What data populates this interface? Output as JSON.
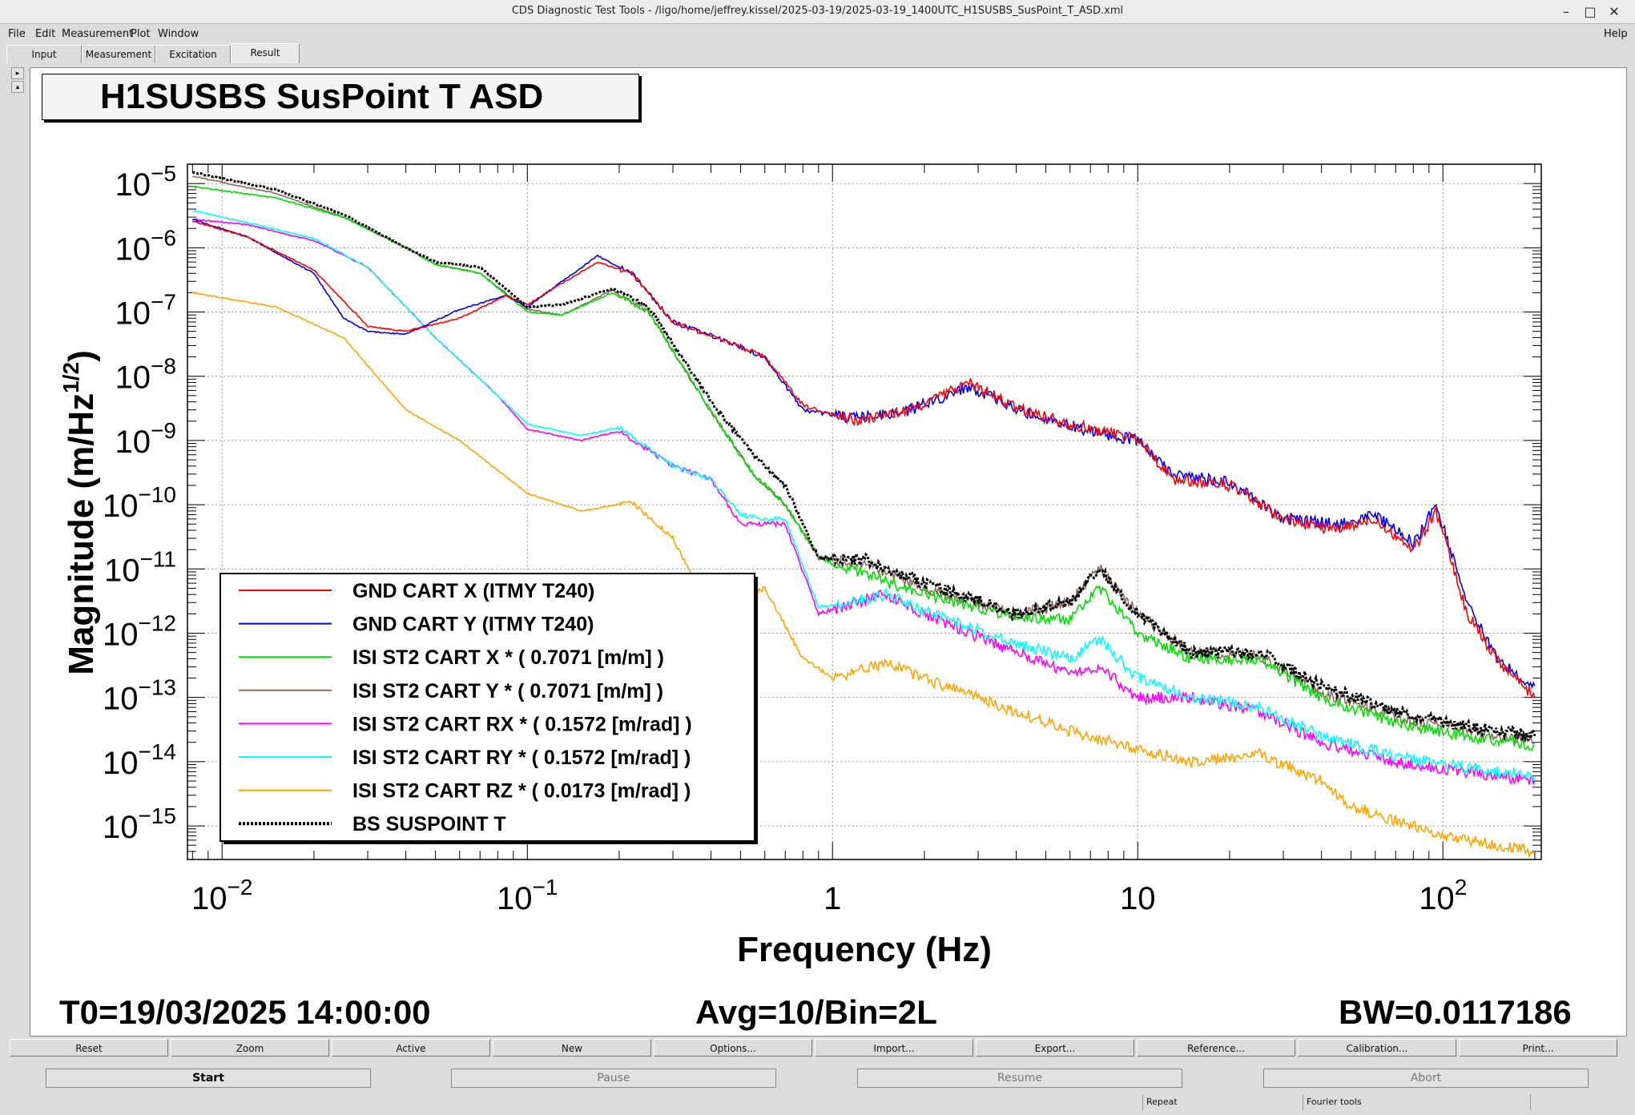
{
  "window": {
    "title": "CDS Diagnostic Test Tools - /ligo/home/jeffrey.kissel/2025-03-19/2025-03-19_1400UTC_H1SUSBS_SusPoint_T_ASD.xml",
    "minimize_glyph": "–",
    "maximize_glyph": "□",
    "close_glyph": "✕"
  },
  "menu": {
    "file": "File",
    "edit": "Edit",
    "measurement": "Measurement",
    "plot": "Plot",
    "window": "Window",
    "help": "Help"
  },
  "tabs": [
    {
      "label": "Input"
    },
    {
      "label": "Measurement"
    },
    {
      "label": "Excitation"
    },
    {
      "label": "Result"
    }
  ],
  "active_tab": "Result",
  "side_arrows": {
    "up": "▸",
    "down": "▴"
  },
  "plot": {
    "title": "H1SUSBS SusPoint T ASD",
    "footer": {
      "t0": "T0=19/03/2025 14:00:00",
      "avg": "Avg=10/Bin=2L",
      "bw": "BW=0.0117186"
    }
  },
  "chart_data": {
    "type": "line",
    "title": "H1SUSBS SusPoint T ASD",
    "xlabel": "Frequency (Hz)",
    "ylabel": "Magnitude (m/Hz^1/2)",
    "xscale": "log",
    "yscale": "log",
    "xlim": [
      0.0077,
      210
    ],
    "ylim": [
      3e-16,
      2e-05
    ],
    "grid": true,
    "legend_position": "lower-left",
    "x_tick_labels": [
      {
        "value": 0.01,
        "base": "10",
        "exp": "−2"
      },
      {
        "value": 0.1,
        "base": "10",
        "exp": "−1"
      },
      {
        "value": 1,
        "base": "1",
        "exp": ""
      },
      {
        "value": 10,
        "base": "10",
        "exp": ""
      },
      {
        "value": 100,
        "base": "10",
        "exp": "2"
      }
    ],
    "y_tick_labels": [
      {
        "value": 1e-05,
        "exp": "−5"
      },
      {
        "value": 1e-06,
        "exp": "−6"
      },
      {
        "value": 1e-07,
        "exp": "−7"
      },
      {
        "value": 1e-08,
        "exp": "−8"
      },
      {
        "value": 1e-09,
        "exp": "−9"
      },
      {
        "value": 1e-10,
        "exp": "−10"
      },
      {
        "value": 1e-11,
        "exp": "−11"
      },
      {
        "value": 1e-12,
        "exp": "−12"
      },
      {
        "value": 1e-13,
        "exp": "−13"
      },
      {
        "value": 1e-14,
        "exp": "−14"
      },
      {
        "value": 1e-15,
        "exp": "−15"
      }
    ],
    "series": [
      {
        "name": "GND CART X (ITMY T240)",
        "color": "#ff0000",
        "dash": "",
        "points": [
          [
            0.008,
            2.6e-06
          ],
          [
            0.012,
            1.5e-06
          ],
          [
            0.02,
            4.5e-07
          ],
          [
            0.03,
            6e-08
          ],
          [
            0.04,
            5e-08
          ],
          [
            0.06,
            8e-08
          ],
          [
            0.085,
            1.8e-07
          ],
          [
            0.1,
            1.3e-07
          ],
          [
            0.13,
            2.8e-07
          ],
          [
            0.17,
            6e-07
          ],
          [
            0.22,
            4e-07
          ],
          [
            0.3,
            7e-08
          ],
          [
            0.45,
            3.5e-08
          ],
          [
            0.6,
            2e-08
          ],
          [
            0.8,
            3.5e-09
          ],
          [
            1.2,
            2e-09
          ],
          [
            1.8,
            3e-09
          ],
          [
            2.8,
            8e-09
          ],
          [
            4,
            3.2e-09
          ],
          [
            7,
            1.5e-09
          ],
          [
            10,
            1.1e-09
          ],
          [
            13,
            2.5e-10
          ],
          [
            20,
            2e-10
          ],
          [
            30,
            6e-11
          ],
          [
            45,
            4e-11
          ],
          [
            60,
            6e-11
          ],
          [
            80,
            2e-11
          ],
          [
            95,
            8e-11
          ],
          [
            120,
            2e-12
          ],
          [
            150,
            4e-13
          ],
          [
            200,
            1e-13
          ]
        ]
      },
      {
        "name": "GND CART Y (ITMY T240)",
        "color": "#0000ee",
        "dash": "",
        "points": [
          [
            0.008,
            2.8e-06
          ],
          [
            0.012,
            1.5e-06
          ],
          [
            0.02,
            4e-07
          ],
          [
            0.025,
            8e-08
          ],
          [
            0.03,
            5e-08
          ],
          [
            0.04,
            4.5e-08
          ],
          [
            0.06,
            1.1e-07
          ],
          [
            0.085,
            1.8e-07
          ],
          [
            0.1,
            1.2e-07
          ],
          [
            0.13,
            3e-07
          ],
          [
            0.17,
            7.5e-07
          ],
          [
            0.22,
            4e-07
          ],
          [
            0.3,
            7e-08
          ],
          [
            0.45,
            3.5e-08
          ],
          [
            0.6,
            2e-08
          ],
          [
            0.8,
            3e-09
          ],
          [
            1.2,
            2.2e-09
          ],
          [
            1.8,
            3e-09
          ],
          [
            2.8,
            7e-09
          ],
          [
            4,
            3e-09
          ],
          [
            7,
            1.4e-09
          ],
          [
            10,
            1e-09
          ],
          [
            13,
            3e-10
          ],
          [
            20,
            2.2e-10
          ],
          [
            30,
            6e-11
          ],
          [
            45,
            5e-11
          ],
          [
            60,
            7e-11
          ],
          [
            80,
            2.5e-11
          ],
          [
            95,
            1e-10
          ],
          [
            120,
            3e-12
          ],
          [
            150,
            4e-13
          ],
          [
            200,
            1.5e-13
          ]
        ]
      },
      {
        "name": "ISI ST2 CART X * ( 0.7071 [m/m] )",
        "color": "#00e000",
        "dash": "",
        "points": [
          [
            0.008,
            9e-06
          ],
          [
            0.015,
            6e-06
          ],
          [
            0.025,
            3e-06
          ],
          [
            0.04,
            1e-06
          ],
          [
            0.05,
            5.5e-07
          ],
          [
            0.07,
            4e-07
          ],
          [
            0.1,
            1e-07
          ],
          [
            0.13,
            9e-08
          ],
          [
            0.19,
            2e-07
          ],
          [
            0.25,
            1e-07
          ],
          [
            0.32,
            1.5e-08
          ],
          [
            0.42,
            2e-09
          ],
          [
            0.55,
            3e-10
          ],
          [
            0.7,
            1e-10
          ],
          [
            0.9,
            1.5e-11
          ],
          [
            1.3,
            8e-12
          ],
          [
            2,
            4e-12
          ],
          [
            4,
            1.8e-12
          ],
          [
            6,
            1.6e-12
          ],
          [
            7.5,
            5e-12
          ],
          [
            10,
            1e-12
          ],
          [
            15,
            4e-13
          ],
          [
            25,
            4e-13
          ],
          [
            40,
            1e-13
          ],
          [
            70,
            4e-14
          ],
          [
            120,
            2.5e-14
          ],
          [
            200,
            1.8e-14
          ]
        ]
      },
      {
        "name": "ISI ST2 CART Y * ( 0.7071 [m/m] )",
        "color": "#8b6d5c",
        "dash": "",
        "points": [
          [
            0.008,
            1.3e-05
          ],
          [
            0.015,
            7e-06
          ],
          [
            0.025,
            3e-06
          ],
          [
            0.04,
            1e-06
          ],
          [
            0.05,
            5.5e-07
          ],
          [
            0.07,
            4e-07
          ],
          [
            0.1,
            1.1e-07
          ],
          [
            0.13,
            9e-08
          ],
          [
            0.19,
            2.2e-07
          ],
          [
            0.25,
            1e-07
          ],
          [
            0.32,
            1.5e-08
          ],
          [
            0.42,
            2e-09
          ],
          [
            0.55,
            3e-10
          ],
          [
            0.7,
            1e-10
          ],
          [
            0.9,
            1.5e-11
          ],
          [
            1.3,
            1.2e-11
          ],
          [
            2,
            5e-12
          ],
          [
            4,
            2e-12
          ],
          [
            6,
            3e-12
          ],
          [
            7.5,
            1.1e-11
          ],
          [
            10,
            2e-12
          ],
          [
            15,
            5e-13
          ],
          [
            25,
            4.5e-13
          ],
          [
            40,
            1.2e-13
          ],
          [
            70,
            5e-14
          ],
          [
            120,
            3e-14
          ],
          [
            200,
            2e-14
          ]
        ]
      },
      {
        "name": "ISI ST2 CART RX * ( 0.1572 [m/rad] )",
        "color": "#ff00ff",
        "dash": "",
        "points": [
          [
            0.008,
            2.8e-06
          ],
          [
            0.012,
            2.3e-06
          ],
          [
            0.02,
            1.3e-06
          ],
          [
            0.03,
            5e-07
          ],
          [
            0.05,
            4e-08
          ],
          [
            0.08,
            5e-09
          ],
          [
            0.1,
            1.5e-09
          ],
          [
            0.15,
            1e-09
          ],
          [
            0.2,
            1.4e-09
          ],
          [
            0.3,
            4e-10
          ],
          [
            0.4,
            2.5e-10
          ],
          [
            0.5,
            5e-11
          ],
          [
            0.6,
            5e-11
          ],
          [
            0.7,
            5e-11
          ],
          [
            0.9,
            2e-12
          ],
          [
            1.5,
            4e-12
          ],
          [
            2,
            2e-12
          ],
          [
            4,
            5e-13
          ],
          [
            6,
            2.5e-13
          ],
          [
            7.5,
            3e-13
          ],
          [
            10,
            1e-13
          ],
          [
            15,
            1e-13
          ],
          [
            25,
            6e-14
          ],
          [
            40,
            2e-14
          ],
          [
            70,
            1e-14
          ],
          [
            120,
            7e-15
          ],
          [
            200,
            5e-15
          ]
        ]
      },
      {
        "name": "ISI ST2 CART RY * ( 0.1572 [m/rad] )",
        "color": "#00ffff",
        "dash": "",
        "points": [
          [
            0.008,
            3.8e-06
          ],
          [
            0.012,
            2.5e-06
          ],
          [
            0.02,
            1.4e-06
          ],
          [
            0.03,
            5e-07
          ],
          [
            0.05,
            4e-08
          ],
          [
            0.08,
            5e-09
          ],
          [
            0.1,
            1.8e-09
          ],
          [
            0.15,
            1.2e-09
          ],
          [
            0.2,
            1.6e-09
          ],
          [
            0.3,
            4e-10
          ],
          [
            0.4,
            2.5e-10
          ],
          [
            0.5,
            7e-11
          ],
          [
            0.6,
            6e-11
          ],
          [
            0.7,
            6e-11
          ],
          [
            0.9,
            2.5e-12
          ],
          [
            1.5,
            4e-12
          ],
          [
            2,
            2.2e-12
          ],
          [
            4,
            7e-13
          ],
          [
            6,
            4e-13
          ],
          [
            7.5,
            8e-13
          ],
          [
            10,
            2e-13
          ],
          [
            15,
            1e-13
          ],
          [
            25,
            7e-14
          ],
          [
            40,
            2.5e-14
          ],
          [
            70,
            1.2e-14
          ],
          [
            120,
            8e-15
          ],
          [
            200,
            6e-15
          ]
        ]
      },
      {
        "name": "ISI ST2 CART RZ * ( 0.0173 [m/rad] )",
        "color": "#ffa500",
        "dash": "",
        "points": [
          [
            0.008,
            2e-07
          ],
          [
            0.015,
            1.2e-07
          ],
          [
            0.025,
            4e-08
          ],
          [
            0.04,
            3e-09
          ],
          [
            0.06,
            1e-09
          ],
          [
            0.1,
            1.5e-10
          ],
          [
            0.15,
            8e-11
          ],
          [
            0.22,
            1.1e-10
          ],
          [
            0.3,
            3e-11
          ],
          [
            0.4,
            2e-12
          ],
          [
            0.6,
            5e-12
          ],
          [
            0.8,
            4e-13
          ],
          [
            1,
            2e-13
          ],
          [
            1.5,
            3.5e-13
          ],
          [
            2,
            2e-13
          ],
          [
            4,
            6e-14
          ],
          [
            6,
            3e-14
          ],
          [
            10,
            1.6e-14
          ],
          [
            15,
            1e-14
          ],
          [
            25,
            1.3e-14
          ],
          [
            40,
            5e-15
          ],
          [
            50,
            2e-15
          ],
          [
            80,
            1e-15
          ],
          [
            120,
            6e-16
          ],
          [
            200,
            4e-16
          ]
        ]
      },
      {
        "name": "BS SUSPOINT T",
        "color": "#000000",
        "dash": "3,2",
        "points": [
          [
            0.008,
            1.5e-05
          ],
          [
            0.015,
            8e-06
          ],
          [
            0.025,
            3.3e-06
          ],
          [
            0.04,
            1e-06
          ],
          [
            0.05,
            6e-07
          ],
          [
            0.07,
            5e-07
          ],
          [
            0.1,
            1.2e-07
          ],
          [
            0.13,
            1.3e-07
          ],
          [
            0.19,
            2.3e-07
          ],
          [
            0.25,
            1.2e-07
          ],
          [
            0.32,
            2e-08
          ],
          [
            0.42,
            3e-09
          ],
          [
            0.55,
            6e-10
          ],
          [
            0.7,
            2e-10
          ],
          [
            0.9,
            1.5e-11
          ],
          [
            1.3,
            1.4e-11
          ],
          [
            2,
            6e-12
          ],
          [
            4,
            2e-12
          ],
          [
            6,
            3e-12
          ],
          [
            7.5,
            1e-11
          ],
          [
            10,
            2e-12
          ],
          [
            15,
            5e-13
          ],
          [
            25,
            5e-13
          ],
          [
            40,
            1.5e-13
          ],
          [
            70,
            6e-14
          ],
          [
            120,
            3.5e-14
          ],
          [
            200,
            2.5e-14
          ]
        ]
      }
    ]
  },
  "plot_buttons": [
    "Reset",
    "Zoom",
    "Active",
    "New",
    "Options...",
    "Import...",
    "Export...",
    "Reference...",
    "Calibration...",
    "Print..."
  ],
  "control_buttons": [
    {
      "label": "Start",
      "enabled": true
    },
    {
      "label": "Pause",
      "enabled": false
    },
    {
      "label": "Resume",
      "enabled": false
    },
    {
      "label": "Abort",
      "enabled": false
    }
  ],
  "status": {
    "repeat": "Repeat",
    "fourier": "Fourier tools"
  }
}
